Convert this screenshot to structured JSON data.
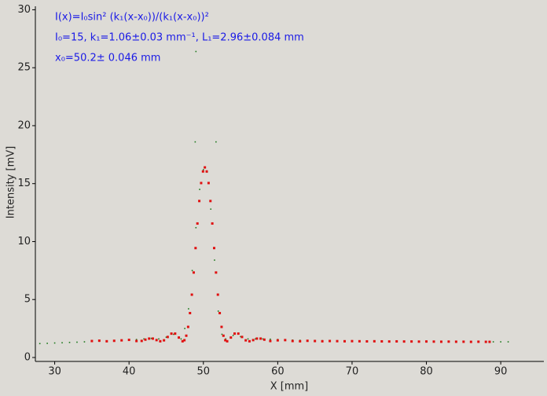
{
  "chart_data": {
    "type": "scatter",
    "xlabel": "X [mm]",
    "ylabel": "Intensity [mV]",
    "annotations": [
      "I(x)=I₀sin² (k₁(x-x₀))/(k₁(x-x₀))²",
      "I₀=15,  k₁=1.06±0.03 mm⁻¹,   L₁=2.96±0.084 mm",
      "x₀=50.2±   0.046 mm"
    ],
    "annotation_color": "#1a1ae6",
    "xlim": [
      27.4,
      95.8
    ],
    "ylim": [
      -0.34,
      30.3
    ],
    "xticks": [
      30,
      40,
      50,
      60,
      70,
      80,
      90
    ],
    "yticks": [
      0,
      5,
      10,
      15,
      20,
      25,
      30
    ],
    "series": [
      {
        "color": "#1e7a1e",
        "x": [
          28,
          29,
          30,
          31,
          32,
          33,
          34,
          35,
          36,
          37,
          38,
          39,
          40,
          41,
          42,
          43,
          44,
          45,
          46,
          47,
          47.5,
          48,
          48.5,
          49,
          49.5,
          50,
          50.5,
          51,
          51.5,
          52,
          52.5,
          53,
          54,
          55,
          56,
          57,
          58,
          59,
          60,
          61,
          62,
          63,
          64,
          65,
          66,
          67,
          68,
          69,
          70,
          71,
          72,
          73,
          74,
          75,
          76,
          77,
          78,
          79,
          80,
          81,
          82,
          83,
          84,
          85,
          86,
          87,
          88,
          89,
          90,
          91,
          49.0,
          48.9,
          51.7
        ],
        "values": [
          1.2,
          1.22,
          1.25,
          1.27,
          1.3,
          1.32,
          1.35,
          1.38,
          1.4,
          1.42,
          1.45,
          1.48,
          1.5,
          1.55,
          1.6,
          1.65,
          1.6,
          1.75,
          2.0,
          1.6,
          2.5,
          4.2,
          7.5,
          11.2,
          14.5,
          16.2,
          16.0,
          12.8,
          8.4,
          4.0,
          2.0,
          1.6,
          1.9,
          1.8,
          1.6,
          1.6,
          1.6,
          1.58,
          1.55,
          1.52,
          1.5,
          1.48,
          1.47,
          1.46,
          1.45,
          1.44,
          1.43,
          1.42,
          1.42,
          1.41,
          1.4,
          1.4,
          1.4,
          1.4,
          1.4,
          1.39,
          1.39,
          1.38,
          1.38,
          1.38,
          1.37,
          1.37,
          1.37,
          1.36,
          1.36,
          1.36,
          1.35,
          1.35,
          1.35,
          1.35,
          26.4,
          18.6,
          18.6
        ]
      },
      {
        "color": "#e01010",
        "x": [
          35,
          36,
          37,
          38,
          39,
          40,
          41,
          41.7,
          42.2,
          42.7,
          43.2,
          43.7,
          44.2,
          44.7,
          45.2,
          45.7,
          46.2,
          46.7,
          47.2,
          47.45,
          47.7,
          47.95,
          48.2,
          48.45,
          48.7,
          48.95,
          49.2,
          49.45,
          49.7,
          49.95,
          50.2,
          50.45,
          50.7,
          50.95,
          51.2,
          51.45,
          51.7,
          51.95,
          52.2,
          52.45,
          52.7,
          52.95,
          53.2,
          53.7,
          54.2,
          54.7,
          55.2,
          55.7,
          56.2,
          56.7,
          57.2,
          57.7,
          58.2,
          59,
          60,
          61,
          62,
          63,
          64,
          65,
          66,
          67,
          68,
          69,
          70,
          71,
          72,
          73,
          74,
          75,
          76,
          77,
          78,
          79,
          80,
          81,
          82,
          83,
          84,
          85,
          86,
          87,
          88,
          88.5
        ],
        "values": [
          1.42,
          1.45,
          1.4,
          1.44,
          1.48,
          1.52,
          1.42,
          1.43,
          1.54,
          1.63,
          1.63,
          1.5,
          1.4,
          1.48,
          1.77,
          2.06,
          2.06,
          1.72,
          1.4,
          1.49,
          1.88,
          2.64,
          3.83,
          5.42,
          7.33,
          9.44,
          11.56,
          13.5,
          15.05,
          16.05,
          16.4,
          16.05,
          15.05,
          13.5,
          11.56,
          9.44,
          7.33,
          5.42,
          3.83,
          2.64,
          1.88,
          1.49,
          1.4,
          1.72,
          2.06,
          2.06,
          1.77,
          1.48,
          1.4,
          1.5,
          1.63,
          1.63,
          1.54,
          1.42,
          1.48,
          1.5,
          1.42,
          1.4,
          1.44,
          1.42,
          1.4,
          1.42,
          1.41,
          1.4,
          1.41,
          1.4,
          1.39,
          1.4,
          1.39,
          1.38,
          1.39,
          1.38,
          1.38,
          1.37,
          1.38,
          1.37,
          1.36,
          1.37,
          1.36,
          1.36,
          1.35,
          1.36,
          1.35,
          1.35
        ]
      }
    ]
  }
}
